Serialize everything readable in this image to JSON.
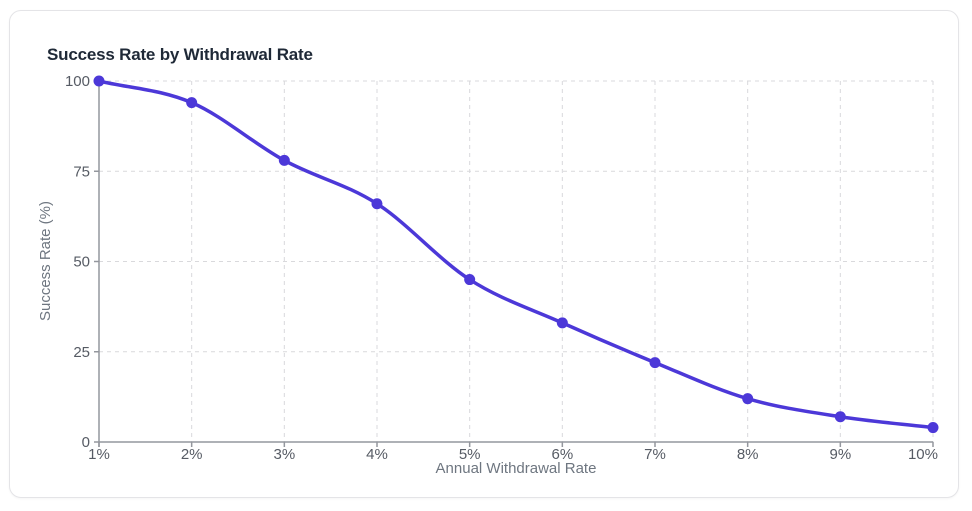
{
  "card": {
    "title": "Success Rate by Withdrawal Rate"
  },
  "chart_data": {
    "type": "line",
    "title": "Success Rate by Withdrawal Rate",
    "xlabel": "Annual Withdrawal Rate",
    "ylabel": "Success Rate (%)",
    "categories": [
      "1%",
      "2%",
      "3%",
      "4%",
      "5%",
      "6%",
      "7%",
      "8%",
      "9%",
      "10%"
    ],
    "series": [
      {
        "name": "Success Rate",
        "values": [
          100,
          94,
          78,
          66,
          45,
          33,
          22,
          12,
          7,
          4
        ]
      }
    ],
    "ylim": [
      0,
      100
    ],
    "yticks": [
      0,
      25,
      50,
      75,
      100
    ],
    "grid": "dashed",
    "legend": false,
    "curve": "monotone",
    "colors": {
      "line": "#4c38d8",
      "point": "#4c38d8",
      "grid": "#d9d9dc",
      "axis": "#94979e",
      "tick_text": "#565b64",
      "axis_title_text": "#6e7680",
      "title_text": "#1f2937",
      "card_border": "#e4e4e7",
      "card_bg": "#ffffff"
    }
  }
}
